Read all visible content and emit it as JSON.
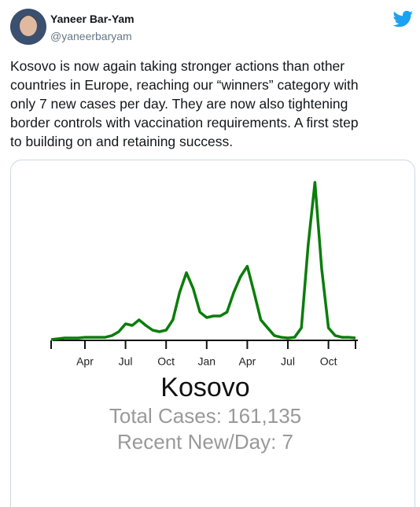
{
  "tweet": {
    "name": "Yaneer Bar-Yam",
    "handle": "@yaneerbaryam",
    "text": [
      "Kosovo is now again taking stronger actions than other",
      "countries in Europe, reaching our “winners” category with",
      "only 7 new cases per day. They are now also tightening",
      "border controls with vaccination requirements. A first step",
      "to building on and retaining success."
    ]
  },
  "chart_data": {
    "type": "line",
    "title": "Kosovo",
    "subtitle": [
      "Total Cases: 161,135",
      "Recent New/Day: 7"
    ],
    "categories": [
      null,
      null,
      null,
      null,
      null,
      "Apr",
      null,
      null,
      null,
      null,
      null,
      "Jul",
      null,
      null,
      null,
      null,
      null,
      "Oct",
      null,
      null,
      null,
      null,
      null,
      "Jan",
      null,
      null,
      null,
      null,
      null,
      "Apr",
      null,
      null,
      null,
      null,
      null,
      "Jul",
      null,
      null,
      null,
      null,
      null,
      "Oct",
      null,
      null,
      null,
      null
    ],
    "series": [
      {
        "color": "#0a7d0a",
        "values": [
          0,
          8,
          15,
          15,
          15,
          22,
          22,
          22,
          22,
          38,
          75,
          150,
          135,
          188,
          135,
          90,
          75,
          90,
          188,
          450,
          638,
          488,
          262,
          210,
          225,
          225,
          262,
          450,
          600,
          700,
          450,
          188,
          112,
          38,
          22,
          15,
          22,
          112,
          900,
          1500,
          675,
          112,
          38,
          22,
          22,
          15
        ]
      }
    ]
  }
}
